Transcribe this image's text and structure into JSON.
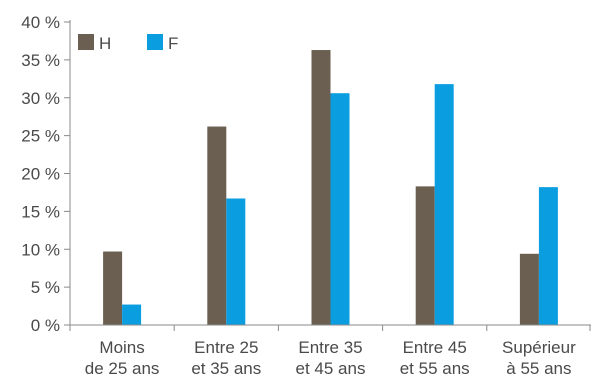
{
  "chart_data": {
    "type": "bar",
    "title": "",
    "xlabel": "",
    "ylabel": "",
    "ylim": [
      0,
      40
    ],
    "yticks": [
      0,
      5,
      10,
      15,
      20,
      25,
      30,
      35,
      40
    ],
    "ytick_labels": [
      "0 %",
      "5 %",
      "10 %",
      "15 %",
      "20 %",
      "25 %",
      "30 %",
      "35 %",
      "40 %"
    ],
    "categories": [
      [
        "Moins",
        "de 25 ans"
      ],
      [
        "Entre 25",
        "et 35 ans"
      ],
      [
        "Entre 35",
        "et 45 ans"
      ],
      [
        "Entre 45",
        "et 55 ans"
      ],
      [
        "Supérieur",
        "à 55 ans"
      ]
    ],
    "series": [
      {
        "name": "H",
        "color": "#6b5f51",
        "values": [
          9.7,
          26.2,
          36.3,
          18.3,
          9.4
        ]
      },
      {
        "name": "F",
        "color": "#0a9ee0",
        "values": [
          2.7,
          16.7,
          30.6,
          31.8,
          18.2
        ]
      }
    ],
    "grid": false,
    "legend": "top-left"
  }
}
